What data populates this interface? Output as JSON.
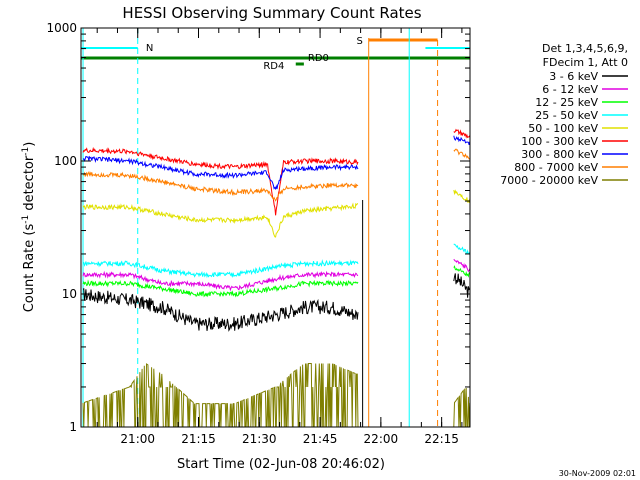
{
  "chart_data": {
    "type": "line",
    "title": "HESSI Observing Summary Count Rates",
    "xlabel": "Start Time (02-Jun-08 20:46:02)",
    "ylabel_main": "Count Rate (s",
    "ylabel_sup1": "-1",
    "ylabel_mid": " detector",
    "ylabel_sup2": "-1",
    "ylabel_end": ")",
    "footer": "30-Nov-2009 02:01",
    "x_range": [
      "20:46",
      "22:22"
    ],
    "y_scale": "log",
    "ylim": [
      1,
      1000
    ],
    "x_ticks": [
      "21:00",
      "21:15",
      "21:30",
      "21:45",
      "22:00",
      "22:15"
    ],
    "y_ticks": [
      "1",
      "10",
      "100",
      "1000"
    ],
    "legend_header": [
      "Det 1,3,4,5,6,9,",
      "FDecim 1, Att 0"
    ],
    "series": [
      {
        "name": "3 - 6 keV",
        "color": "#000000",
        "points": [
          [
            0,
            10
          ],
          [
            12,
            9
          ],
          [
            20,
            8
          ],
          [
            28,
            6
          ],
          [
            38,
            6
          ],
          [
            48,
            7
          ],
          [
            55,
            8
          ],
          [
            62,
            8
          ],
          [
            68,
            7
          ]
        ],
        "tail": [
          [
            92,
            14
          ],
          [
            95,
            11
          ],
          [
            96,
            10
          ]
        ]
      },
      {
        "name": "6 - 12 keV",
        "color": "#e100e1",
        "points": [
          [
            0,
            14
          ],
          [
            12,
            14
          ],
          [
            20,
            12
          ],
          [
            28,
            12
          ],
          [
            38,
            11
          ],
          [
            48,
            13
          ],
          [
            55,
            14
          ],
          [
            62,
            14
          ],
          [
            68,
            14
          ]
        ],
        "tail": [
          [
            92,
            18
          ],
          [
            95,
            16
          ],
          [
            96,
            15
          ]
        ]
      },
      {
        "name": "12 - 25 keV",
        "color": "#00ff00",
        "points": [
          [
            0,
            12
          ],
          [
            12,
            12
          ],
          [
            20,
            11
          ],
          [
            28,
            10
          ],
          [
            38,
            10
          ],
          [
            48,
            11
          ],
          [
            55,
            12
          ],
          [
            62,
            12
          ],
          [
            68,
            12
          ]
        ],
        "tail": [
          [
            92,
            16
          ],
          [
            95,
            14
          ],
          [
            96,
            14
          ]
        ]
      },
      {
        "name": "25 - 50 keV",
        "color": "#00ffff",
        "points": [
          [
            0,
            17
          ],
          [
            12,
            17
          ],
          [
            20,
            15
          ],
          [
            28,
            14
          ],
          [
            38,
            14
          ],
          [
            48,
            16
          ],
          [
            55,
            17
          ],
          [
            62,
            17
          ],
          [
            68,
            17
          ]
        ],
        "tail": [
          [
            92,
            23
          ],
          [
            95,
            21
          ],
          [
            96,
            20
          ]
        ]
      },
      {
        "name": "50 - 100 keV",
        "color": "#e1e100",
        "points": [
          [
            0,
            45
          ],
          [
            12,
            45
          ],
          [
            20,
            40
          ],
          [
            28,
            36
          ],
          [
            38,
            36
          ],
          [
            46,
            38
          ],
          [
            48,
            27
          ],
          [
            50,
            38
          ],
          [
            55,
            42
          ],
          [
            62,
            44
          ],
          [
            68,
            46
          ]
        ],
        "tail": [
          [
            92,
            60
          ],
          [
            95,
            52
          ],
          [
            96,
            50
          ]
        ]
      },
      {
        "name": "100 - 300 keV",
        "color": "#ff0000",
        "points": [
          [
            0,
            120
          ],
          [
            12,
            118
          ],
          [
            20,
            105
          ],
          [
            28,
            95
          ],
          [
            38,
            90
          ],
          [
            46,
            95
          ],
          [
            48,
            40
          ],
          [
            50,
            98
          ],
          [
            55,
            100
          ],
          [
            62,
            100
          ],
          [
            68,
            98
          ]
        ],
        "tail": [
          [
            92,
            170
          ],
          [
            95,
            155
          ],
          [
            96,
            150
          ]
        ]
      },
      {
        "name": "300 - 800 keV",
        "color": "#0000ff",
        "points": [
          [
            0,
            105
          ],
          [
            12,
            100
          ],
          [
            20,
            90
          ],
          [
            28,
            80
          ],
          [
            38,
            78
          ],
          [
            46,
            82
          ],
          [
            48,
            60
          ],
          [
            50,
            85
          ],
          [
            55,
            88
          ],
          [
            62,
            90
          ],
          [
            68,
            90
          ]
        ],
        "tail": [
          [
            92,
            150
          ],
          [
            95,
            140
          ],
          [
            96,
            135
          ]
        ]
      },
      {
        "name": "800 - 7000 keV",
        "color": "#ff7f00",
        "points": [
          [
            0,
            80
          ],
          [
            12,
            78
          ],
          [
            20,
            70
          ],
          [
            28,
            62
          ],
          [
            38,
            58
          ],
          [
            46,
            60
          ],
          [
            48,
            50
          ],
          [
            50,
            62
          ],
          [
            55,
            64
          ],
          [
            62,
            66
          ],
          [
            68,
            65
          ]
        ],
        "tail": [
          [
            92,
            120
          ],
          [
            95,
            110
          ],
          [
            96,
            100
          ]
        ]
      },
      {
        "name": "7000 - 20000 keV",
        "color": "#7f7f00",
        "points": [
          [
            0,
            1.5
          ],
          [
            12,
            2
          ],
          [
            16,
            3
          ],
          [
            20,
            2.5
          ],
          [
            28,
            1.5
          ],
          [
            38,
            1.5
          ],
          [
            48,
            2
          ],
          [
            55,
            3
          ],
          [
            62,
            3
          ],
          [
            68,
            2.5
          ]
        ],
        "tail": [
          [
            92,
            1.5
          ],
          [
            95,
            2
          ],
          [
            96,
            1.5
          ]
        ]
      }
    ],
    "flags": [
      {
        "label": "N",
        "color": "#00ffff"
      },
      {
        "label": "S",
        "color": "#ff7f00"
      },
      {
        "label": "RD0",
        "color": "#007f00"
      },
      {
        "label": "RD4",
        "color": "#007f00"
      }
    ]
  }
}
